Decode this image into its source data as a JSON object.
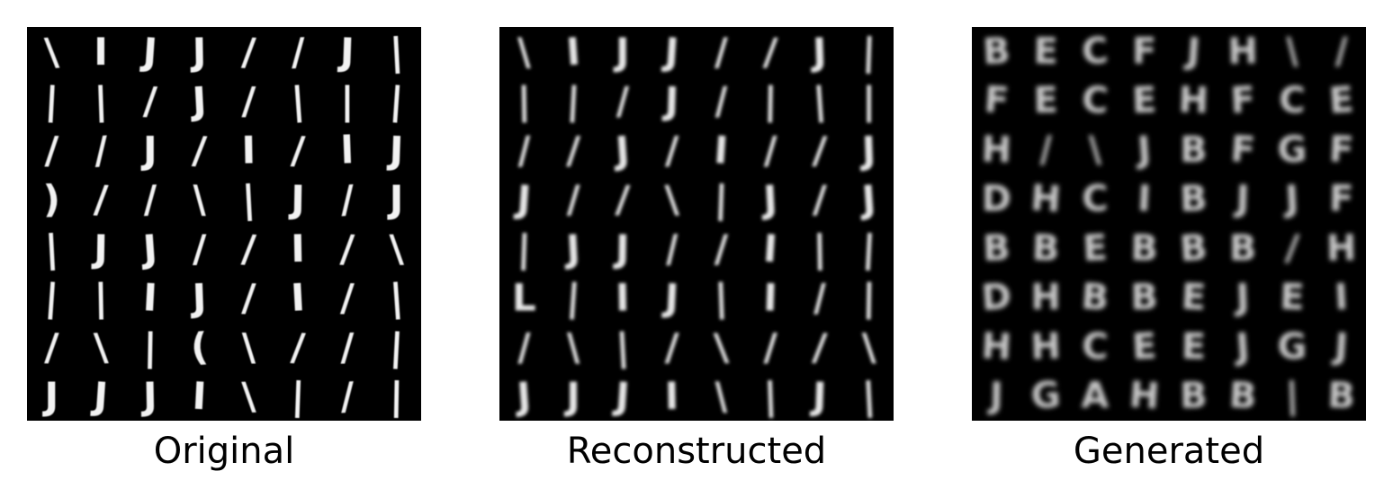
{
  "panels": [
    {
      "caption": "Original",
      "style": "sharp",
      "grid": [
        [
          "\\",
          "I",
          "J",
          "J",
          "/",
          "/",
          "J",
          "|"
        ],
        [
          "|",
          "|",
          "/",
          "J",
          "/",
          "|",
          "|",
          "|"
        ],
        [
          "/",
          "/",
          "J",
          "/",
          "I",
          "/",
          "l",
          "J"
        ],
        [
          ")",
          "/",
          "/",
          "\\",
          "|",
          "J",
          "/",
          "J"
        ],
        [
          "|",
          "J",
          "J",
          "/",
          "/",
          "I",
          "/",
          "\\"
        ],
        [
          "|",
          "|",
          "I",
          "J",
          "/",
          "I",
          "/",
          "|"
        ],
        [
          "/",
          "\\",
          "|",
          "(",
          "\\",
          "/",
          "/",
          "|"
        ],
        [
          "J",
          "J",
          "J",
          "I",
          "\\",
          "|",
          "/",
          "|"
        ]
      ]
    },
    {
      "caption": "Reconstructed",
      "style": "soft",
      "grid": [
        [
          "\\",
          "I",
          "J",
          "J",
          "/",
          "/",
          "J",
          "|"
        ],
        [
          "|",
          "|",
          "/",
          "J",
          "/",
          "|",
          "|",
          "|"
        ],
        [
          "/",
          "/",
          "J",
          "/",
          "I",
          "/",
          "/",
          "J"
        ],
        [
          "J",
          "/",
          "/",
          "\\",
          "|",
          "J",
          "/",
          "J"
        ],
        [
          "|",
          "J",
          "J",
          "/",
          "/",
          "I",
          "|",
          "|"
        ],
        [
          "L",
          "|",
          "I",
          "J",
          "|",
          "I",
          "/",
          "|"
        ],
        [
          "/",
          "\\",
          "|",
          "/",
          "\\",
          "/",
          "/",
          "\\"
        ],
        [
          "J",
          "J",
          "J",
          "I",
          "\\",
          "|",
          "J",
          "|"
        ]
      ]
    },
    {
      "caption": "Generated",
      "style": "blurry",
      "grid": [
        [
          "B",
          "E",
          "C",
          "F",
          "J",
          "H",
          "\\",
          "/"
        ],
        [
          "F",
          "E",
          "C",
          "E",
          "H",
          "F",
          "C",
          "E"
        ],
        [
          "H",
          "/",
          "\\",
          "J",
          "B",
          "F",
          "G",
          "F"
        ],
        [
          "D",
          "H",
          "C",
          "I",
          "B",
          "J",
          "J",
          "F"
        ],
        [
          "B",
          "B",
          "E",
          "B",
          "B",
          "B",
          "/",
          "H"
        ],
        [
          "D",
          "H",
          "B",
          "B",
          "E",
          "J",
          "E",
          "I"
        ],
        [
          "H",
          "H",
          "C",
          "E",
          "E",
          "J",
          "G",
          "J"
        ],
        [
          "J",
          "G",
          "A",
          "H",
          "B",
          "B",
          "|",
          "B"
        ]
      ]
    }
  ]
}
